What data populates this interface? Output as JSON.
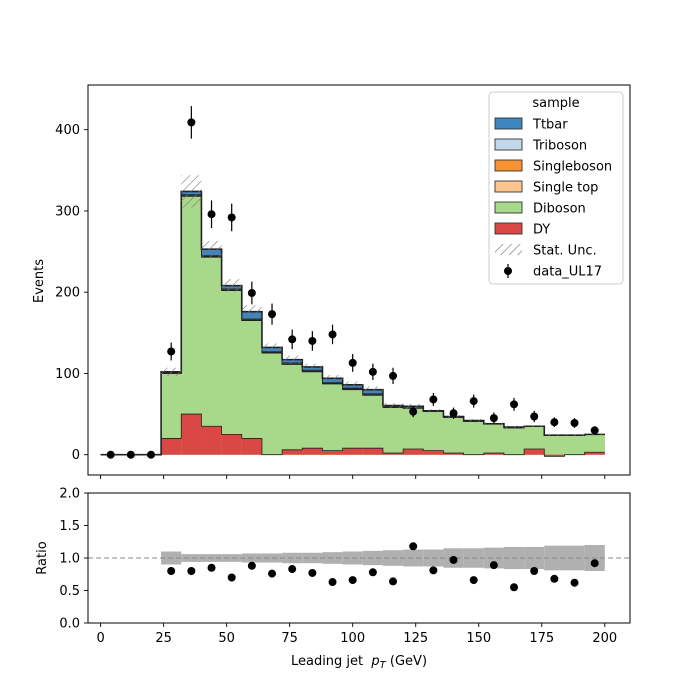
{
  "chart_data": [
    {
      "type": "histogram-stack",
      "panel": "main",
      "ylabel": "Events",
      "ylim": [
        -25,
        455
      ],
      "yticks": [
        0,
        100,
        200,
        300,
        400
      ],
      "xlim": [
        -5,
        210
      ],
      "bin_edges": [
        0,
        8,
        16,
        24,
        32,
        40,
        48,
        56,
        64,
        72,
        80,
        88,
        96,
        104,
        112,
        120,
        128,
        136,
        144,
        152,
        160,
        168,
        176,
        184,
        192,
        200
      ],
      "stack_order": [
        "DY",
        "Diboson",
        "Single top",
        "Singleboson",
        "Triboson",
        "Ttbar"
      ],
      "stack_colors": {
        "Ttbar": "#3f86c0",
        "Triboson": "#c4d8ec",
        "Singleboson": "#f89334",
        "Single top": "#fdc68f",
        "Diboson": "#a8d98a",
        "DY": "#d94845"
      },
      "series": [
        {
          "name": "DY",
          "values": [
            0,
            0,
            0,
            20,
            50,
            35,
            25,
            20,
            0,
            6,
            8,
            5,
            8,
            8,
            2,
            7,
            5,
            2,
            0,
            2,
            0,
            7,
            -2,
            0,
            3
          ]
        },
        {
          "name": "Diboson",
          "values": [
            0,
            0,
            0,
            80,
            268,
            208,
            177,
            145,
            125,
            105,
            94,
            82,
            72,
            65,
            56,
            50,
            48,
            44,
            41,
            36,
            33,
            28,
            26,
            24,
            22
          ]
        },
        {
          "name": "Single top",
          "values": [
            0,
            0,
            0,
            0,
            0.5,
            0.5,
            0.5,
            0.5,
            0.5,
            0.5,
            0.5,
            0.5,
            0.5,
            0.5,
            0.5,
            0.5,
            0,
            0,
            0,
            0,
            0,
            0,
            0,
            0,
            0
          ]
        },
        {
          "name": "Singleboson",
          "values": [
            0,
            0,
            0,
            0,
            0.5,
            0.5,
            0.5,
            0.5,
            0.5,
            0.5,
            0.5,
            0.5,
            0.5,
            0.5,
            0,
            0,
            0,
            0,
            0,
            0,
            0,
            0,
            0,
            0,
            0
          ]
        },
        {
          "name": "Triboson",
          "values": [
            0,
            0,
            0,
            1,
            1,
            1,
            1,
            1,
            1,
            1,
            1,
            1,
            1,
            1,
            1,
            0,
            0,
            0,
            0,
            0,
            0,
            0,
            0,
            0,
            0
          ]
        },
        {
          "name": "Ttbar",
          "values": [
            0,
            0,
            0,
            1,
            4,
            8,
            4,
            9,
            5,
            4,
            4,
            5,
            4,
            5,
            1,
            2,
            1,
            1,
            1,
            0,
            1,
            0,
            0,
            0,
            0
          ]
        }
      ],
      "stat_unc": [
        0,
        0,
        0,
        5,
        20,
        10,
        8,
        8,
        5,
        5,
        4,
        4,
        4,
        4,
        3,
        3,
        2,
        2,
        2,
        2,
        2,
        1,
        1,
        1,
        1
      ],
      "data": {
        "name": "data_UL17",
        "values": [
          0,
          0,
          0,
          127,
          409,
          296,
          292,
          199,
          173,
          142,
          140,
          148,
          113,
          102,
          97,
          53,
          68,
          51,
          66,
          45,
          62,
          47,
          40,
          39,
          30
        ],
        "errors": [
          0,
          0,
          0,
          11,
          20,
          17,
          17,
          14,
          13,
          12,
          12,
          12,
          11,
          10,
          10,
          7,
          8,
          7,
          8,
          7,
          8,
          7,
          6,
          6,
          5
        ]
      },
      "legend": {
        "title": "sample",
        "placement": "upper-right",
        "entries": [
          "Ttbar",
          "Triboson",
          "Singleboson",
          "Single top",
          "Diboson",
          "DY",
          "Stat. Unc.",
          "data_UL17"
        ]
      }
    },
    {
      "type": "ratio",
      "panel": "ratio",
      "ylabel": "Ratio",
      "xlabel": "Leading jet  $p_T$ (GeV)",
      "xlabel_parts": [
        "Leading jet  ",
        "p",
        "T",
        " (GeV)"
      ],
      "ylim": [
        0,
        2
      ],
      "yticks": [
        "0.0",
        "0.5",
        "1.0",
        "1.5",
        "2.0"
      ],
      "xticks": [
        0,
        25,
        50,
        75,
        100,
        125,
        150,
        175,
        200
      ],
      "reference_line": 1.0,
      "values": [
        null,
        null,
        null,
        0.8,
        0.8,
        0.85,
        0.7,
        0.88,
        0.76,
        0.83,
        0.77,
        0.63,
        0.66,
        0.78,
        0.64,
        1.18,
        0.81,
        0.97,
        0.66,
        0.89,
        0.55,
        0.8,
        0.68,
        0.62,
        0.92
      ],
      "unc_band": [
        0,
        0,
        0,
        0.1,
        0.06,
        0.06,
        0.06,
        0.07,
        0.07,
        0.08,
        0.08,
        0.09,
        0.1,
        0.11,
        0.12,
        0.13,
        0.13,
        0.15,
        0.15,
        0.16,
        0.17,
        0.17,
        0.19,
        0.19,
        0.2
      ]
    }
  ]
}
